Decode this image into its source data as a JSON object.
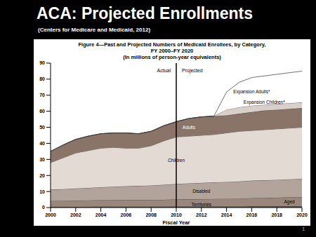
{
  "slide": {
    "title": "ACA: Projected Enrollments",
    "subtitle": "(Centers for Medicare and Medicaid, 2012)",
    "page_number": "1"
  },
  "chart_data": {
    "type": "area",
    "stacked": true,
    "title": "Figure 4—Past and Projected Numbers of Medicaid Enrollees, by Category, FY 2000–FY 2020",
    "subtitle": "(In millions of person-year equivalents)",
    "x_label": "Fiscal Year",
    "x": [
      2000,
      2001,
      2002,
      2003,
      2004,
      2005,
      2006,
      2007,
      2008,
      2009,
      2010,
      2011,
      2012,
      2013,
      2014,
      2015,
      2016,
      2017,
      2018,
      2019,
      2020
    ],
    "xlim": [
      2000,
      2020
    ],
    "xticks": [
      2000,
      2002,
      2004,
      2006,
      2008,
      2010,
      2012,
      2014,
      2016,
      2018,
      2020
    ],
    "ylim": [
      0,
      90
    ],
    "yticks": [
      0,
      10,
      20,
      30,
      40,
      50,
      60,
      70,
      80,
      90
    ],
    "grid": false,
    "divider": {
      "x": 2010,
      "left_label": "Actual",
      "right_label": "Projected"
    },
    "series": [
      {
        "name": "Territories",
        "color": "#6e5d54",
        "values": [
          0.6,
          0.6,
          0.6,
          0.6,
          0.7,
          0.7,
          0.7,
          0.7,
          0.7,
          0.7,
          0.8,
          0.8,
          0.8,
          0.8,
          0.8,
          0.8,
          0.9,
          0.9,
          0.9,
          0.9,
          0.9
        ]
      },
      {
        "name": "Aged",
        "color": "#9a877c",
        "values": [
          3.6,
          3.7,
          3.8,
          3.9,
          4.0,
          4.0,
          4.1,
          4.1,
          4.1,
          4.2,
          4.3,
          4.4,
          4.5,
          4.6,
          4.7,
          4.8,
          5.0,
          5.1,
          5.3,
          5.5,
          5.7
        ]
      },
      {
        "name": "Disabled",
        "color": "#b3a49b",
        "values": [
          7.0,
          7.2,
          7.5,
          7.7,
          8.0,
          8.3,
          8.5,
          8.7,
          9.0,
          9.3,
          9.6,
          9.9,
          10.1,
          10.3,
          10.5,
          10.7,
          10.9,
          11.0,
          11.1,
          11.2,
          11.3
        ]
      },
      {
        "name": "Children",
        "color": "#e3dad3",
        "values": [
          16.8,
          19.5,
          22.1,
          23.3,
          24.3,
          24.5,
          23.7,
          23.5,
          24.7,
          27.3,
          29.3,
          29.4,
          29.6,
          29.8,
          30.5,
          31.2,
          31.2,
          31.5,
          31.7,
          31.9,
          32.1
        ]
      },
      {
        "name": "Adults",
        "color": "#8a7468",
        "values": [
          7,
          8,
          8.5,
          9,
          9,
          9,
          9.5,
          9,
          9,
          9.5,
          9.5,
          11,
          11.5,
          11.5,
          11,
          11,
          11.5,
          12,
          12,
          12,
          12
        ]
      },
      {
        "name": "Expansion Children*",
        "color": "#d9d0ca",
        "values": [
          0,
          0,
          0,
          0,
          0,
          0,
          0,
          0,
          0,
          0,
          0,
          0,
          0,
          0,
          3.5,
          4,
          4,
          3.5,
          3.5,
          3.5,
          3.5
        ]
      },
      {
        "name": "Expansion Adults*",
        "color": "#ffffff",
        "values": [
          0,
          0,
          0,
          0,
          0,
          0,
          0,
          0,
          0,
          0,
          0,
          0,
          0,
          0,
          11,
          15.5,
          17.5,
          18,
          18.5,
          19,
          19.5
        ]
      }
    ]
  }
}
